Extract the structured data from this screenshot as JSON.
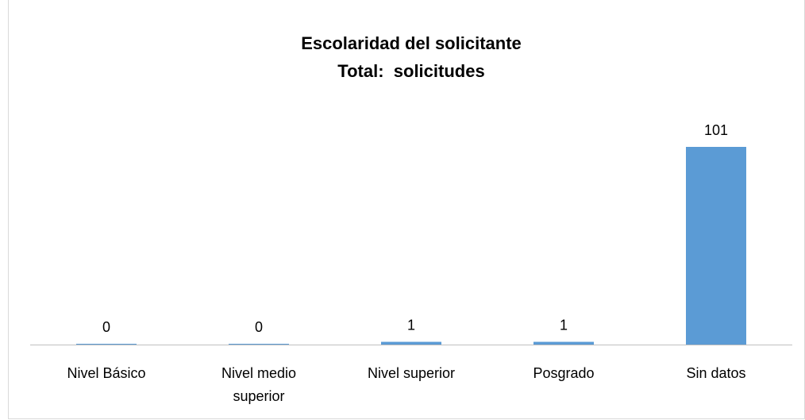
{
  "chart_data": {
    "type": "bar",
    "title": "Escolaridad del solicitante",
    "subtitle": "Total:  solicitudes",
    "categories": [
      "Nivel Básico",
      "Nivel medio superior",
      "Nivel superior",
      "Posgrado",
      "Sin datos"
    ],
    "values": [
      0,
      0,
      1,
      1,
      101
    ],
    "color": "#5b9bd5"
  }
}
